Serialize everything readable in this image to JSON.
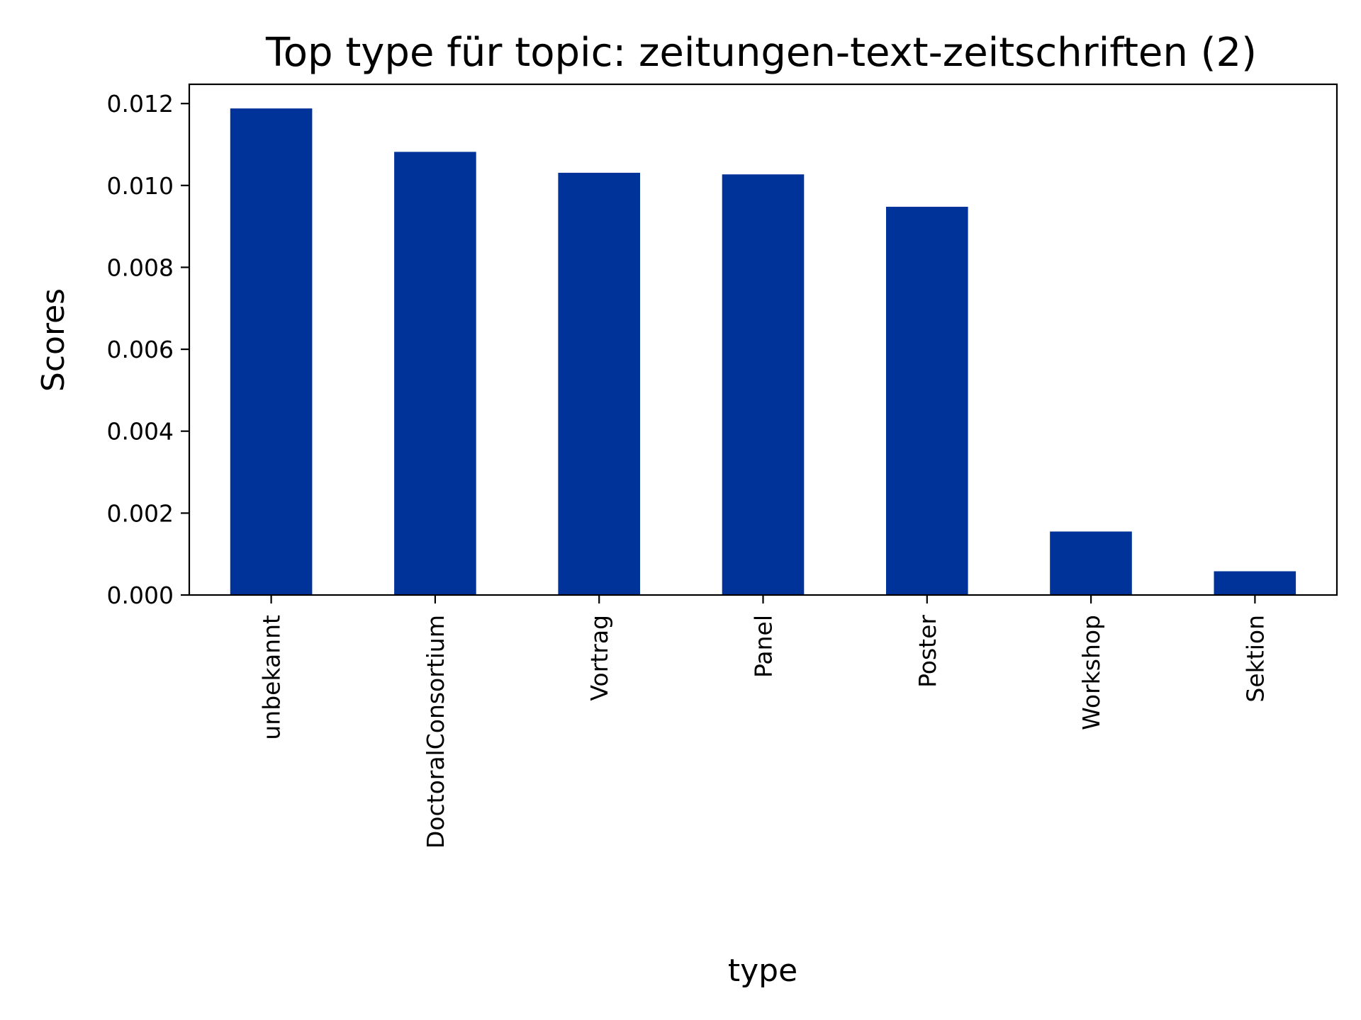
{
  "chart_data": {
    "type": "bar",
    "title": "Top type für topic: zeitungen-text-zeitschriften (2)",
    "xlabel": "type",
    "ylabel": "Scores",
    "categories": [
      "unbekannt",
      "DoctoralConsortium",
      "Vortrag",
      "Panel",
      "Poster",
      "Workshop",
      "Sektion"
    ],
    "values": [
      0.01188,
      0.01082,
      0.01031,
      0.01027,
      0.00948,
      0.00155,
      0.00058
    ],
    "ylim": [
      0,
      0.01247
    ],
    "yticks": [
      "0.000",
      "0.002",
      "0.004",
      "0.006",
      "0.008",
      "0.010",
      "0.012"
    ],
    "bar_color": "#003399",
    "grid": false,
    "legend": false
  }
}
